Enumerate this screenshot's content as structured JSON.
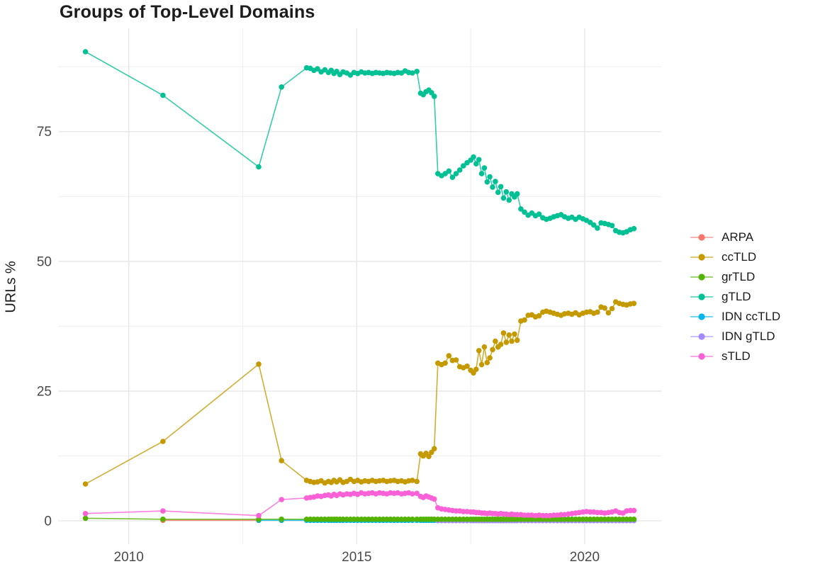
{
  "page": {
    "background": "#FFFFFF"
  },
  "chart_data": {
    "type": "line",
    "title": "Groups of Top-Level Domains",
    "xlabel": "",
    "ylabel": "URLs %",
    "x_unit": "year",
    "xlim": [
      2008.45,
      2021.68
    ],
    "ylim": [
      -4.5,
      94.9
    ],
    "x_ticks": [
      2010,
      2015,
      2020
    ],
    "x_minor_ticks": [
      2012.5,
      2017.5
    ],
    "y_ticks": [
      0,
      25,
      50,
      75
    ],
    "y_minor_ticks": [
      12.5,
      37.5,
      62.5,
      87.5
    ],
    "grid": true,
    "legend_position": "right",
    "axis_text_color": "#4A4A4A",
    "grid_major_color": "#E8E8E8",
    "grid_minor_color": "#F0F0F0",
    "draw_order": [
      "ARPA",
      "IDN ccTLD",
      "IDN gTLD",
      "grTLD",
      "ccTLD",
      "sTLD",
      "gTLD"
    ],
    "x": [
      2009.05,
      2010.75,
      2012.85,
      2013.35,
      2013.9,
      2013.98,
      2014.06,
      2014.14,
      2014.22,
      2014.3,
      2014.38,
      2014.44,
      2014.5,
      2014.56,
      2014.63,
      2014.7,
      2014.78,
      2014.86,
      2014.94,
      2015.02,
      2015.1,
      2015.18,
      2015.26,
      2015.34,
      2015.42,
      2015.5,
      2015.58,
      2015.66,
      2015.74,
      2015.82,
      2015.9,
      2015.98,
      2016.06,
      2016.14,
      2016.22,
      2016.32,
      2016.4,
      2016.46,
      2016.52,
      2016.58,
      2016.64,
      2016.7,
      2016.78,
      2016.86,
      2016.94,
      2017.02,
      2017.1,
      2017.18,
      2017.26,
      2017.34,
      2017.42,
      2017.5,
      2017.56,
      2017.62,
      2017.68,
      2017.74,
      2017.8,
      2017.86,
      2017.92,
      2017.98,
      2018.04,
      2018.1,
      2018.16,
      2018.22,
      2018.28,
      2018.34,
      2018.4,
      2018.46,
      2018.52,
      2018.6,
      2018.68,
      2018.76,
      2018.84,
      2018.92,
      2019.0,
      2019.08,
      2019.16,
      2019.24,
      2019.32,
      2019.4,
      2019.48,
      2019.56,
      2019.64,
      2019.72,
      2019.8,
      2019.88,
      2019.96,
      2020.04,
      2020.12,
      2020.2,
      2020.28,
      2020.36,
      2020.44,
      2020.52,
      2020.6,
      2020.68,
      2020.76,
      2020.84,
      2020.92,
      2021.0,
      2021.08
    ],
    "series": [
      {
        "name": "ARPA",
        "color": "#F8766D",
        "y": [
          null,
          0.1,
          0.1,
          null,
          null,
          null,
          null,
          null,
          null,
          null,
          null,
          null,
          null,
          null,
          null,
          null,
          null,
          null,
          null,
          null,
          null,
          null,
          null,
          null,
          null,
          null,
          null,
          null,
          null,
          null,
          null,
          null,
          null,
          null,
          null,
          null,
          null,
          null,
          null,
          null,
          null,
          null,
          null,
          null,
          null,
          null,
          null,
          null,
          null,
          null,
          null,
          null,
          null,
          null,
          null,
          null,
          null,
          null,
          null,
          null,
          null,
          null,
          null,
          null,
          null,
          null,
          null,
          null,
          null,
          null,
          null,
          null,
          null,
          null,
          null,
          null,
          null,
          null,
          null,
          null,
          null,
          null,
          null,
          null,
          null,
          null,
          null,
          null,
          null,
          null,
          null,
          null,
          null,
          null,
          null,
          null,
          null,
          null,
          null,
          null,
          null
        ]
      },
      {
        "name": "ccTLD",
        "color": "#C49A00",
        "y": [
          7.1,
          15.3,
          30.2,
          11.6,
          7.8,
          7.6,
          7.4,
          7.5,
          7.7,
          7.3,
          7.6,
          7.4,
          7.8,
          7.5,
          7.9,
          7.4,
          7.6,
          8.0,
          7.6,
          7.8,
          7.5,
          7.7,
          7.6,
          7.8,
          7.6,
          7.7,
          7.8,
          7.6,
          7.7,
          7.8,
          7.6,
          7.7,
          7.5,
          7.7,
          7.8,
          7.6,
          12.9,
          12.5,
          13.0,
          12.4,
          13.2,
          13.9,
          30.4,
          30.1,
          30.4,
          31.8,
          30.9,
          31.0,
          29.7,
          29.5,
          29.8,
          29.0,
          28.5,
          29.2,
          32.8,
          30.1,
          33.5,
          30.5,
          31.4,
          33.0,
          34.6,
          33.5,
          34.0,
          36.2,
          34.4,
          35.8,
          34.6,
          36.0,
          34.8,
          38.5,
          38.7,
          39.6,
          39.7,
          39.3,
          39.5,
          40.2,
          40.4,
          40.2,
          40.0,
          39.8,
          39.6,
          39.9,
          40.0,
          39.8,
          40.1,
          39.7,
          40.0,
          40.2,
          40.3,
          40.0,
          40.2,
          41.2,
          41.0,
          40.1,
          40.9,
          42.2,
          41.9,
          41.7,
          41.6,
          41.8,
          41.9
        ]
      },
      {
        "name": "grTLD",
        "color": "#53B400",
        "y": [
          0.5,
          0.3,
          0.3,
          0.3,
          0.3,
          0.3,
          0.3,
          0.3,
          0.3,
          0.3,
          0.3,
          0.3,
          0.3,
          0.3,
          0.3,
          0.3,
          0.3,
          0.3,
          0.3,
          0.3,
          0.3,
          0.3,
          0.3,
          0.3,
          0.3,
          0.3,
          0.3,
          0.3,
          0.3,
          0.3,
          0.3,
          0.3,
          0.3,
          0.3,
          0.3,
          0.3,
          0.3,
          0.3,
          0.3,
          0.3,
          0.3,
          0.3,
          0.3,
          0.3,
          0.3,
          0.3,
          0.3,
          0.3,
          0.3,
          0.3,
          0.3,
          0.3,
          0.3,
          0.3,
          0.3,
          0.3,
          0.3,
          0.3,
          0.3,
          0.3,
          0.3,
          0.3,
          0.3,
          0.3,
          0.3,
          0.3,
          0.3,
          0.3,
          0.3,
          0.3,
          0.3,
          0.3,
          0.3,
          0.3,
          0.3,
          0.3,
          0.3,
          0.3,
          0.3,
          0.3,
          0.3,
          0.3,
          0.3,
          0.3,
          0.3,
          0.3,
          0.3,
          0.3,
          0.3,
          0.3,
          0.3,
          0.3,
          0.3,
          0.3,
          0.3,
          0.3,
          0.3,
          0.3,
          0.3,
          0.3,
          0.3
        ]
      },
      {
        "name": "gTLD",
        "color": "#00C094",
        "y": [
          90.4,
          82.0,
          68.2,
          83.6,
          87.3,
          87.2,
          86.8,
          87.1,
          86.5,
          86.9,
          86.4,
          86.8,
          86.2,
          86.6,
          86.0,
          86.5,
          86.3,
          85.9,
          86.4,
          86.2,
          86.5,
          86.3,
          86.4,
          86.2,
          86.4,
          86.3,
          86.2,
          86.4,
          86.3,
          86.2,
          86.4,
          86.3,
          86.7,
          86.4,
          86.3,
          86.6,
          82.4,
          82.1,
          82.7,
          83.0,
          82.5,
          81.8,
          66.9,
          66.5,
          66.9,
          67.4,
          66.2,
          66.9,
          67.6,
          68.4,
          69.0,
          69.5,
          70.1,
          68.8,
          69.6,
          66.9,
          68.0,
          65.3,
          66.3,
          64.3,
          65.4,
          63.3,
          64.4,
          62.2,
          63.4,
          61.8,
          63.0,
          62.4,
          63.0,
          60.1,
          59.5,
          58.9,
          59.3,
          58.8,
          59.1,
          58.4,
          58.1,
          58.3,
          58.6,
          58.8,
          59.0,
          58.6,
          58.3,
          58.5,
          58.1,
          58.5,
          58.2,
          57.9,
          57.5,
          57.0,
          56.4,
          57.4,
          57.3,
          57.1,
          56.9,
          55.9,
          55.6,
          55.5,
          55.7,
          56.1,
          56.3
        ]
      },
      {
        "name": "IDN ccTLD",
        "color": "#00B6EB",
        "y": [
          null,
          null,
          0.1,
          0.1,
          0.1,
          0.1,
          0.1,
          0.1,
          0.1,
          0.1,
          0.1,
          0.1,
          0.1,
          0.1,
          0.1,
          0.1,
          0.1,
          0.1,
          0.1,
          0.1,
          0.1,
          0.1,
          0.1,
          0.1,
          0.1,
          0.1,
          0.1,
          0.1,
          0.1,
          0.1,
          0.1,
          0.1,
          0.1,
          0.1,
          0.1,
          0.1,
          0.1,
          0.1,
          0.1,
          0.1,
          0.1,
          0.1,
          0.1,
          0.1,
          0.1,
          0.1,
          0.1,
          0.1,
          0.1,
          0.1,
          0.1,
          0.1,
          0.1,
          0.1,
          0.1,
          0.1,
          0.1,
          0.1,
          0.1,
          0.1,
          0.1,
          0.1,
          0.1,
          0.1,
          0.1,
          0.1,
          0.1,
          0.1,
          0.1,
          0.1,
          0.1,
          0.1,
          0.1,
          0.1,
          0.1,
          0.1,
          0.1,
          0.1,
          0.1,
          0.1,
          0.1,
          0.1,
          0.1,
          0.1,
          0.1,
          0.1,
          0.1,
          0.1,
          0.1,
          0.1,
          0.1,
          0.1,
          0.1,
          0.1,
          0.1,
          0.1,
          0.1,
          0.1,
          0.1,
          0.1,
          0.1
        ]
      },
      {
        "name": "IDN gTLD",
        "color": "#A58AFF",
        "y": [
          null,
          null,
          null,
          null,
          null,
          null,
          null,
          null,
          null,
          null,
          null,
          null,
          null,
          null,
          null,
          null,
          null,
          null,
          null,
          null,
          null,
          null,
          null,
          null,
          null,
          null,
          null,
          null,
          null,
          null,
          null,
          null,
          null,
          null,
          null,
          null,
          null,
          null,
          null,
          null,
          null,
          null,
          0.05,
          0.05,
          0.05,
          0.05,
          0.05,
          0.05,
          0.05,
          0.05,
          0.05,
          0.05,
          0.05,
          0.05,
          0.05,
          0.05,
          0.05,
          0.05,
          0.05,
          0.05,
          0.05,
          0.05,
          0.05,
          0.05,
          0.05,
          0.05,
          0.05,
          0.05,
          0.05,
          0.05,
          0.05,
          0.05,
          0.05,
          0.05,
          0.05,
          0.05,
          0.05,
          0.05,
          0.05,
          0.05,
          0.05,
          0.05,
          0.05,
          0.05,
          0.05,
          0.05,
          0.05,
          0.05,
          0.05,
          0.05,
          0.05,
          0.05,
          0.05,
          0.05,
          0.05,
          0.05,
          0.05,
          0.05,
          0.05,
          0.05,
          0.05
        ]
      },
      {
        "name": "sTLD",
        "color": "#FB61D7",
        "y": [
          1.4,
          1.9,
          1.0,
          4.1,
          4.4,
          4.5,
          4.6,
          4.8,
          4.7,
          4.9,
          5.0,
          4.8,
          5.1,
          4.9,
          5.2,
          5.0,
          5.2,
          5.1,
          5.3,
          5.1,
          5.4,
          5.2,
          5.3,
          5.4,
          5.2,
          5.4,
          5.3,
          5.2,
          5.4,
          5.3,
          5.4,
          5.2,
          5.3,
          5.4,
          5.2,
          5.3,
          4.7,
          4.5,
          4.8,
          4.6,
          4.4,
          4.2,
          2.5,
          2.3,
          2.2,
          2.1,
          2.0,
          1.9,
          1.9,
          1.8,
          1.8,
          1.7,
          1.7,
          1.6,
          1.6,
          1.5,
          1.5,
          1.4,
          1.5,
          1.4,
          1.4,
          1.3,
          1.4,
          1.3,
          1.3,
          1.2,
          1.3,
          1.2,
          1.2,
          1.2,
          1.1,
          1.1,
          1.1,
          1.0,
          1.1,
          1.0,
          1.0,
          1.0,
          1.1,
          1.1,
          1.2,
          1.2,
          1.3,
          1.4,
          1.5,
          1.6,
          1.7,
          1.8,
          1.7,
          1.7,
          1.6,
          1.6,
          1.5,
          1.6,
          1.7,
          1.9,
          1.6,
          1.5,
          1.9,
          2.0,
          2.0
        ]
      }
    ]
  }
}
